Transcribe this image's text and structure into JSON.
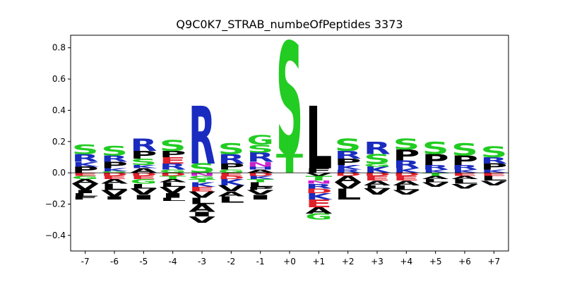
{
  "chart_data": {
    "type": "sequence-logo",
    "title": "Q9C0K7_STRAB_numbeOfPeptides 3373",
    "xlabel": "",
    "ylabel": "",
    "categories": [
      "-7",
      "-6",
      "-5",
      "-4",
      "-3",
      "-2",
      "-1",
      "+0",
      "+1",
      "+2",
      "+3",
      "+4",
      "+5",
      "+6",
      "+7"
    ],
    "yticks": [
      "−0.4",
      "−0.2",
      "0.0",
      "0.2",
      "0.4",
      "0.6",
      "0.8"
    ],
    "ylim": [
      -0.5,
      0.88
    ],
    "grid": false,
    "colors": {
      "S": "#22cc22",
      "T": "#22cc22",
      "G": "#22cc22",
      "R": "#1a2bbf",
      "K": "#1a2bbf",
      "H": "#1a2bbf",
      "D": "#e0202a",
      "E": "#e0202a",
      "N": "#cc22cc",
      "Q": "#cc22cc",
      "P": "#000000",
      "L": "#000000",
      "V": "#000000",
      "A": "#000000",
      "I": "#000000",
      "F": "#000000",
      "Y": "#000000",
      "W": "#000000",
      "M": "#000000",
      "C": "#000000"
    },
    "positions": [
      {
        "label": "-7",
        "pos": [
          [
            "P",
            0.04
          ],
          [
            "K",
            0.03
          ],
          [
            "R",
            0.05
          ],
          [
            "S",
            0.06
          ]
        ],
        "neg": [
          [
            "E",
            0.02
          ],
          [
            "G",
            0.02
          ],
          [
            "A",
            0.03
          ],
          [
            "V",
            0.04
          ],
          [
            "I",
            0.02
          ],
          [
            "L",
            0.02
          ],
          [
            "F",
            0.02
          ]
        ]
      },
      {
        "label": "-6",
        "pos": [
          [
            "G",
            0.01
          ],
          [
            "K",
            0.02
          ],
          [
            "P",
            0.04
          ],
          [
            "R",
            0.04
          ],
          [
            "S",
            0.06
          ]
        ],
        "neg": [
          [
            "D",
            0.02
          ],
          [
            "E",
            0.02
          ],
          [
            "A",
            0.03
          ],
          [
            "L",
            0.04
          ],
          [
            "V",
            0.04
          ],
          [
            "I",
            0.02
          ]
        ]
      },
      {
        "label": "-5",
        "pos": [
          [
            "A",
            0.03
          ],
          [
            "K",
            0.02
          ],
          [
            "S",
            0.04
          ],
          [
            "P",
            0.05
          ],
          [
            "R",
            0.08
          ]
        ],
        "neg": [
          [
            "D",
            0.02
          ],
          [
            "E",
            0.02
          ],
          [
            "G",
            0.03
          ],
          [
            "L",
            0.03
          ],
          [
            "V",
            0.04
          ],
          [
            "I",
            0.03
          ]
        ]
      },
      {
        "label": "-4",
        "pos": [
          [
            "G",
            0.02
          ],
          [
            "R",
            0.04
          ],
          [
            "E",
            0.04
          ],
          [
            "P",
            0.04
          ],
          [
            "S",
            0.07
          ]
        ],
        "neg": [
          [
            "D",
            0.02
          ],
          [
            "T",
            0.02
          ],
          [
            "A",
            0.02
          ],
          [
            "L",
            0.03
          ],
          [
            "V",
            0.04
          ],
          [
            "I",
            0.03
          ],
          [
            "L",
            0.02
          ]
        ]
      },
      {
        "label": "-3",
        "pos": [
          [
            "S",
            0.06
          ],
          [
            "R",
            0.37
          ]
        ],
        "neg": [
          [
            "N",
            0.02
          ],
          [
            "G",
            0.02
          ],
          [
            "T",
            0.02
          ],
          [
            "K",
            0.03
          ],
          [
            "E",
            0.03
          ],
          [
            "V",
            0.04
          ],
          [
            "L",
            0.04
          ],
          [
            "A",
            0.05
          ],
          [
            "I",
            0.03
          ],
          [
            "V",
            0.04
          ]
        ]
      },
      {
        "label": "-2",
        "pos": [
          [
            "G",
            0.02
          ],
          [
            "P",
            0.04
          ],
          [
            "R",
            0.06
          ],
          [
            "S",
            0.07
          ]
        ],
        "neg": [
          [
            "E",
            0.02
          ],
          [
            "D",
            0.02
          ],
          [
            "K",
            0.04
          ],
          [
            "V",
            0.04
          ],
          [
            "A",
            0.03
          ],
          [
            "L",
            0.04
          ]
        ]
      },
      {
        "label": "-1",
        "pos": [
          [
            "A",
            0.02
          ],
          [
            "H",
            0.02
          ],
          [
            "N",
            0.03
          ],
          [
            "R",
            0.06
          ],
          [
            "S",
            0.05
          ],
          [
            "G",
            0.06
          ]
        ],
        "neg": [
          [
            "D",
            0.02
          ],
          [
            "K",
            0.02
          ],
          [
            "T",
            0.02
          ],
          [
            "L",
            0.03
          ],
          [
            "P",
            0.02
          ],
          [
            "V",
            0.03
          ],
          [
            "I",
            0.03
          ]
        ]
      },
      {
        "label": "+0",
        "pos": [
          [
            "T",
            0.12
          ],
          [
            "S",
            0.72
          ]
        ],
        "neg": []
      },
      {
        "label": "+1",
        "pos": [
          [
            "F",
            0.03
          ],
          [
            "L",
            0.4
          ]
        ],
        "neg": [
          [
            "V",
            0.02
          ],
          [
            "T",
            0.03
          ],
          [
            "N",
            0.02
          ],
          [
            "R",
            0.03
          ],
          [
            "D",
            0.03
          ],
          [
            "K",
            0.04
          ],
          [
            "E",
            0.05
          ],
          [
            "A",
            0.04
          ],
          [
            "G",
            0.04
          ]
        ]
      },
      {
        "label": "+2",
        "pos": [
          [
            "R",
            0.02
          ],
          [
            "K",
            0.03
          ],
          [
            "P",
            0.04
          ],
          [
            "R",
            0.05
          ],
          [
            "S",
            0.08
          ]
        ],
        "neg": [
          [
            "D",
            0.02
          ],
          [
            "A",
            0.04
          ],
          [
            "V",
            0.04
          ],
          [
            "L",
            0.07
          ]
        ]
      },
      {
        "label": "+3",
        "pos": [
          [
            "K",
            0.04
          ],
          [
            "G",
            0.02
          ],
          [
            "S",
            0.06
          ],
          [
            "R",
            0.08
          ]
        ],
        "neg": [
          [
            "D",
            0.02
          ],
          [
            "E",
            0.03
          ],
          [
            "A",
            0.03
          ],
          [
            "L",
            0.02
          ],
          [
            "V",
            0.04
          ]
        ]
      },
      {
        "label": "+4",
        "pos": [
          [
            "K",
            0.03
          ],
          [
            "R",
            0.05
          ],
          [
            "P",
            0.07
          ],
          [
            "S",
            0.07
          ]
        ],
        "neg": [
          [
            "D",
            0.02
          ],
          [
            "E",
            0.03
          ],
          [
            "A",
            0.03
          ],
          [
            "L",
            0.03
          ],
          [
            "V",
            0.03
          ]
        ]
      },
      {
        "label": "+5",
        "pos": [
          [
            "K",
            0.02
          ],
          [
            "R",
            0.03
          ],
          [
            "P",
            0.07
          ],
          [
            "S",
            0.08
          ]
        ],
        "neg": [
          [
            "T",
            0.02
          ],
          [
            "A",
            0.02
          ],
          [
            "L",
            0.02
          ],
          [
            "V",
            0.03
          ]
        ]
      },
      {
        "label": "+6",
        "pos": [
          [
            "K",
            0.02
          ],
          [
            "R",
            0.03
          ],
          [
            "P",
            0.06
          ],
          [
            "S",
            0.08
          ]
        ],
        "neg": [
          [
            "E",
            0.02
          ],
          [
            "A",
            0.02
          ],
          [
            "L",
            0.03
          ],
          [
            "V",
            0.03
          ]
        ]
      },
      {
        "label": "+7",
        "pos": [
          [
            "K",
            0.02
          ],
          [
            "P",
            0.04
          ],
          [
            "R",
            0.04
          ],
          [
            "S",
            0.07
          ]
        ],
        "neg": [
          [
            "E",
            0.02
          ],
          [
            "L",
            0.03
          ],
          [
            "V",
            0.03
          ]
        ]
      }
    ]
  }
}
